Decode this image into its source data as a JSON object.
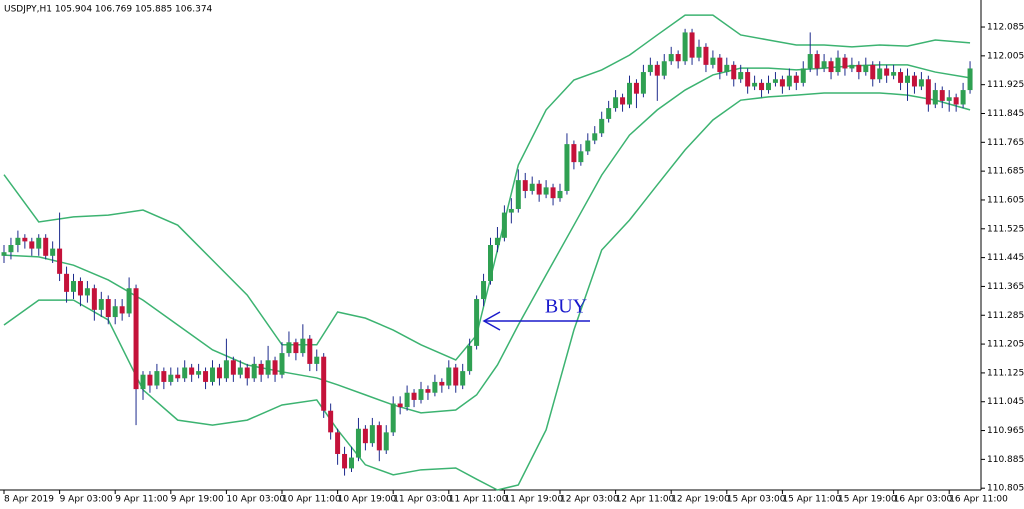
{
  "chart_data": {
    "type": "candlestick",
    "title": "USDJPY,H1 105.904 106.769 105.885 106.374",
    "annotation": "BUY",
    "up_color": "#2fa052",
    "down_color": "#c4123a",
    "wick_color": "#1c2a8c",
    "ylim": [
      110.8,
      112.16
    ],
    "yticks": [
      112.085,
      112.005,
      111.925,
      111.845,
      111.765,
      111.685,
      111.605,
      111.525,
      111.445,
      111.365,
      111.285,
      111.205,
      111.125,
      111.045,
      110.965,
      110.885,
      110.805
    ],
    "categories": [
      "8 Apr 2019",
      null,
      null,
      null,
      null,
      null,
      null,
      null,
      "9 Apr 03:00",
      null,
      null,
      null,
      null,
      null,
      null,
      null,
      "9 Apr 11:00",
      null,
      null,
      null,
      null,
      null,
      null,
      null,
      "9 Apr 19:00",
      null,
      null,
      null,
      null,
      null,
      null,
      null,
      "10 Apr 03:00",
      null,
      null,
      null,
      null,
      null,
      null,
      null,
      "10 Apr 11:00",
      null,
      null,
      null,
      null,
      null,
      null,
      null,
      "10 Apr 19:00",
      null,
      null,
      null,
      null,
      null,
      null,
      null,
      "11 Apr 03:00",
      null,
      null,
      null,
      null,
      null,
      null,
      null,
      "11 Apr 11:00",
      null,
      null,
      null,
      null,
      null,
      null,
      null,
      "11 Apr 19:00",
      null,
      null,
      null,
      null,
      null,
      null,
      null,
      "12 Apr 03:00",
      null,
      null,
      null,
      null,
      null,
      null,
      null,
      "12 Apr 11:00",
      null,
      null,
      null,
      null,
      null,
      null,
      null,
      "12 Apr 19:00",
      null,
      null,
      null,
      null,
      null,
      null,
      null,
      "15 Apr 03:00",
      null,
      null,
      null,
      null,
      null,
      null,
      null,
      "15 Apr 11:00",
      null,
      null,
      null,
      null,
      null,
      null,
      null,
      "15 Apr 19:00",
      null,
      null,
      null,
      null,
      null,
      null,
      null,
      "16 Apr 03:00",
      null,
      null,
      null,
      null,
      null,
      null,
      null,
      "16 Apr 11:00",
      null,
      null,
      null
    ],
    "ohlc": [
      [
        111.45,
        111.48,
        111.43,
        111.46
      ],
      [
        111.46,
        111.5,
        111.44,
        111.48
      ],
      [
        111.48,
        111.52,
        111.46,
        111.5
      ],
      [
        111.5,
        111.51,
        111.47,
        111.49
      ],
      [
        111.49,
        111.5,
        111.45,
        111.47
      ],
      [
        111.47,
        111.51,
        111.45,
        111.5
      ],
      [
        111.5,
        111.51,
        111.44,
        111.45
      ],
      [
        111.45,
        111.49,
        111.43,
        111.47
      ],
      [
        111.47,
        111.57,
        111.38,
        111.4
      ],
      [
        111.4,
        111.42,
        111.32,
        111.35
      ],
      [
        111.35,
        111.4,
        111.33,
        111.38
      ],
      [
        111.38,
        111.39,
        111.31,
        111.34
      ],
      [
        111.34,
        111.38,
        111.32,
        111.36
      ],
      [
        111.36,
        111.37,
        111.27,
        111.3
      ],
      [
        111.3,
        111.35,
        111.28,
        111.33
      ],
      [
        111.33,
        111.34,
        111.26,
        111.28
      ],
      [
        111.28,
        111.33,
        111.26,
        111.31
      ],
      [
        111.31,
        111.33,
        111.27,
        111.29
      ],
      [
        111.29,
        111.39,
        111.28,
        111.36
      ],
      [
        111.36,
        111.37,
        110.98,
        111.08
      ],
      [
        111.08,
        111.13,
        111.05,
        111.12
      ],
      [
        111.12,
        111.13,
        111.07,
        111.09
      ],
      [
        111.09,
        111.15,
        111.08,
        111.13
      ],
      [
        111.13,
        111.14,
        111.08,
        111.1
      ],
      [
        111.1,
        111.14,
        111.09,
        111.12
      ],
      [
        111.12,
        111.14,
        111.1,
        111.11
      ],
      [
        111.11,
        111.16,
        111.1,
        111.14
      ],
      [
        111.14,
        111.15,
        111.1,
        111.12
      ],
      [
        111.12,
        111.15,
        111.11,
        111.13
      ],
      [
        111.13,
        111.14,
        111.08,
        111.1
      ],
      [
        111.1,
        111.16,
        111.09,
        111.14
      ],
      [
        111.14,
        111.15,
        111.09,
        111.11
      ],
      [
        111.11,
        111.22,
        111.1,
        111.16
      ],
      [
        111.16,
        111.17,
        111.1,
        111.12
      ],
      [
        111.12,
        111.16,
        111.11,
        111.14
      ],
      [
        111.14,
        111.15,
        111.09,
        111.11
      ],
      [
        111.11,
        111.17,
        111.1,
        111.15
      ],
      [
        111.15,
        111.16,
        111.1,
        111.12
      ],
      [
        111.12,
        111.2,
        111.11,
        111.16
      ],
      [
        111.16,
        111.17,
        111.1,
        111.12
      ],
      [
        111.12,
        111.21,
        111.11,
        111.18
      ],
      [
        111.18,
        111.24,
        111.17,
        111.21
      ],
      [
        111.21,
        111.22,
        111.16,
        111.18
      ],
      [
        111.18,
        111.26,
        111.17,
        111.22
      ],
      [
        111.22,
        111.23,
        111.13,
        111.15
      ],
      [
        111.15,
        111.19,
        111.13,
        111.17
      ],
      [
        111.17,
        111.18,
        111.0,
        111.02
      ],
      [
        111.02,
        111.04,
        110.94,
        110.96
      ],
      [
        110.96,
        110.97,
        110.87,
        110.9
      ],
      [
        110.9,
        110.92,
        110.84,
        110.86
      ],
      [
        110.86,
        110.92,
        110.85,
        110.89
      ],
      [
        110.89,
        111.0,
        110.88,
        110.97
      ],
      [
        110.97,
        110.98,
        110.91,
        110.93
      ],
      [
        110.93,
        111.0,
        110.92,
        110.98
      ],
      [
        110.98,
        110.99,
        110.88,
        110.91
      ],
      [
        110.91,
        110.98,
        110.9,
        110.96
      ],
      [
        110.96,
        111.06,
        110.95,
        111.04
      ],
      [
        111.04,
        111.06,
        111.01,
        111.03
      ],
      [
        111.03,
        111.09,
        111.02,
        111.07
      ],
      [
        111.07,
        111.08,
        111.03,
        111.05
      ],
      [
        111.05,
        111.1,
        111.04,
        111.08
      ],
      [
        111.08,
        111.09,
        111.05,
        111.07
      ],
      [
        111.07,
        111.12,
        111.06,
        111.1
      ],
      [
        111.1,
        111.11,
        111.07,
        111.09
      ],
      [
        111.09,
        111.16,
        111.08,
        111.14
      ],
      [
        111.14,
        111.15,
        111.07,
        111.09
      ],
      [
        111.09,
        111.15,
        111.08,
        111.13
      ],
      [
        111.13,
        111.22,
        111.12,
        111.2
      ],
      [
        111.2,
        111.34,
        111.19,
        111.33
      ],
      [
        111.33,
        111.4,
        111.31,
        111.38
      ],
      [
        111.38,
        111.5,
        111.37,
        111.48
      ],
      [
        111.48,
        111.53,
        111.46,
        111.5
      ],
      [
        111.5,
        111.59,
        111.49,
        111.57
      ],
      [
        111.57,
        111.61,
        111.54,
        111.58
      ],
      [
        111.58,
        111.69,
        111.57,
        111.66
      ],
      [
        111.66,
        111.68,
        111.61,
        111.63
      ],
      [
        111.63,
        111.67,
        111.62,
        111.65
      ],
      [
        111.65,
        111.66,
        111.6,
        111.62
      ],
      [
        111.62,
        111.66,
        111.61,
        111.64
      ],
      [
        111.64,
        111.65,
        111.59,
        111.61
      ],
      [
        111.61,
        111.65,
        111.6,
        111.63
      ],
      [
        111.63,
        111.79,
        111.62,
        111.76
      ],
      [
        111.76,
        111.77,
        111.69,
        111.71
      ],
      [
        111.71,
        111.76,
        111.7,
        111.74
      ],
      [
        111.74,
        111.79,
        111.73,
        111.77
      ],
      [
        111.77,
        111.81,
        111.76,
        111.79
      ],
      [
        111.79,
        111.85,
        111.78,
        111.83
      ],
      [
        111.83,
        111.88,
        111.82,
        111.86
      ],
      [
        111.86,
        111.91,
        111.85,
        111.89
      ],
      [
        111.89,
        111.9,
        111.85,
        111.87
      ],
      [
        111.87,
        111.95,
        111.86,
        111.93
      ],
      [
        111.93,
        111.94,
        111.86,
        111.9
      ],
      [
        111.9,
        111.98,
        111.89,
        111.96
      ],
      [
        111.96,
        112.0,
        111.95,
        111.98
      ],
      [
        111.98,
        111.99,
        111.88,
        111.95
      ],
      [
        111.95,
        112.01,
        111.94,
        111.99
      ],
      [
        111.99,
        112.03,
        111.98,
        112.01
      ],
      [
        112.01,
        112.02,
        111.97,
        111.99
      ],
      [
        111.99,
        112.08,
        111.98,
        112.07
      ],
      [
        112.07,
        112.08,
        111.98,
        112.0
      ],
      [
        112.0,
        112.05,
        111.99,
        112.03
      ],
      [
        112.03,
        112.04,
        111.96,
        111.98
      ],
      [
        111.98,
        112.02,
        111.97,
        112.0
      ],
      [
        112.0,
        112.01,
        111.94,
        111.96
      ],
      [
        111.96,
        112.0,
        111.95,
        111.98
      ],
      [
        111.98,
        111.99,
        111.92,
        111.94
      ],
      [
        111.94,
        111.98,
        111.93,
        111.96
      ],
      [
        111.96,
        111.97,
        111.9,
        111.92
      ],
      [
        111.92,
        111.95,
        111.91,
        111.93
      ],
      [
        111.93,
        111.94,
        111.89,
        111.91
      ],
      [
        111.91,
        111.95,
        111.9,
        111.93
      ],
      [
        111.93,
        111.96,
        111.92,
        111.94
      ],
      [
        111.94,
        111.95,
        111.9,
        111.92
      ],
      [
        111.92,
        111.97,
        111.91,
        111.95
      ],
      [
        111.95,
        111.96,
        111.91,
        111.93
      ],
      [
        111.93,
        111.99,
        111.92,
        111.97
      ],
      [
        111.97,
        112.07,
        111.96,
        112.01
      ],
      [
        112.01,
        112.02,
        111.95,
        111.97
      ],
      [
        111.97,
        112.01,
        111.96,
        111.99
      ],
      [
        111.99,
        112.0,
        111.94,
        111.96
      ],
      [
        111.96,
        112.02,
        111.95,
        112.0
      ],
      [
        112.0,
        112.01,
        111.95,
        111.97
      ],
      [
        111.97,
        112.0,
        111.96,
        111.98
      ],
      [
        111.98,
        111.99,
        111.94,
        111.96
      ],
      [
        111.96,
        112.0,
        111.95,
        111.98
      ],
      [
        111.98,
        111.99,
        111.92,
        111.94
      ],
      [
        111.94,
        111.99,
        111.93,
        111.97
      ],
      [
        111.97,
        111.98,
        111.93,
        111.95
      ],
      [
        111.95,
        111.98,
        111.94,
        111.96
      ],
      [
        111.96,
        111.97,
        111.91,
        111.93
      ],
      [
        111.93,
        111.97,
        111.88,
        111.95
      ],
      [
        111.95,
        111.96,
        111.9,
        111.92
      ],
      [
        111.92,
        111.96,
        111.91,
        111.94
      ],
      [
        111.94,
        111.95,
        111.85,
        111.87
      ],
      [
        111.87,
        111.93,
        111.86,
        111.91
      ],
      [
        111.91,
        111.92,
        111.86,
        111.88
      ],
      [
        111.88,
        111.91,
        111.85,
        111.89
      ],
      [
        111.89,
        111.9,
        111.85,
        111.87
      ],
      [
        111.87,
        111.93,
        111.86,
        111.91
      ],
      [
        111.91,
        111.99,
        111.9,
        111.97
      ]
    ],
    "bands": {
      "color": "#3cb371",
      "x": [
        0,
        5,
        10,
        15,
        20,
        25,
        30,
        35,
        40,
        45,
        48,
        52,
        56,
        60,
        65,
        68,
        71,
        74,
        78,
        82,
        86,
        90,
        94,
        98,
        102,
        106,
        110,
        114,
        118,
        122,
        126,
        130,
        134,
        139
      ],
      "upper": [
        111.675,
        111.544,
        111.558,
        111.563,
        111.577,
        111.535,
        111.438,
        111.341,
        111.203,
        111.203,
        111.294,
        111.277,
        111.244,
        111.203,
        111.161,
        111.23,
        111.466,
        111.702,
        111.855,
        111.938,
        111.966,
        112.007,
        112.063,
        112.118,
        112.118,
        112.063,
        112.049,
        112.035,
        112.035,
        112.03,
        112.035,
        112.032,
        112.049,
        112.041
      ],
      "middle": [
        111.452,
        111.447,
        111.424,
        111.383,
        111.327,
        111.258,
        111.189,
        111.147,
        111.128,
        111.111,
        111.092,
        111.064,
        111.036,
        111.014,
        111.022,
        111.064,
        111.147,
        111.258,
        111.397,
        111.535,
        111.674,
        111.785,
        111.855,
        111.91,
        111.952,
        111.971,
        111.971,
        111.966,
        111.971,
        111.977,
        111.98,
        111.98,
        111.96,
        111.944
      ],
      "lower": [
        111.258,
        111.327,
        111.327,
        111.272,
        111.078,
        110.994,
        110.98,
        110.994,
        111.036,
        111.05,
        110.967,
        110.87,
        110.842,
        110.856,
        110.861,
        110.83,
        110.8,
        110.814,
        110.967,
        111.244,
        111.466,
        111.549,
        111.647,
        111.744,
        111.827,
        111.882,
        111.891,
        111.896,
        111.902,
        111.902,
        111.902,
        111.896,
        111.882,
        111.855
      ]
    }
  }
}
